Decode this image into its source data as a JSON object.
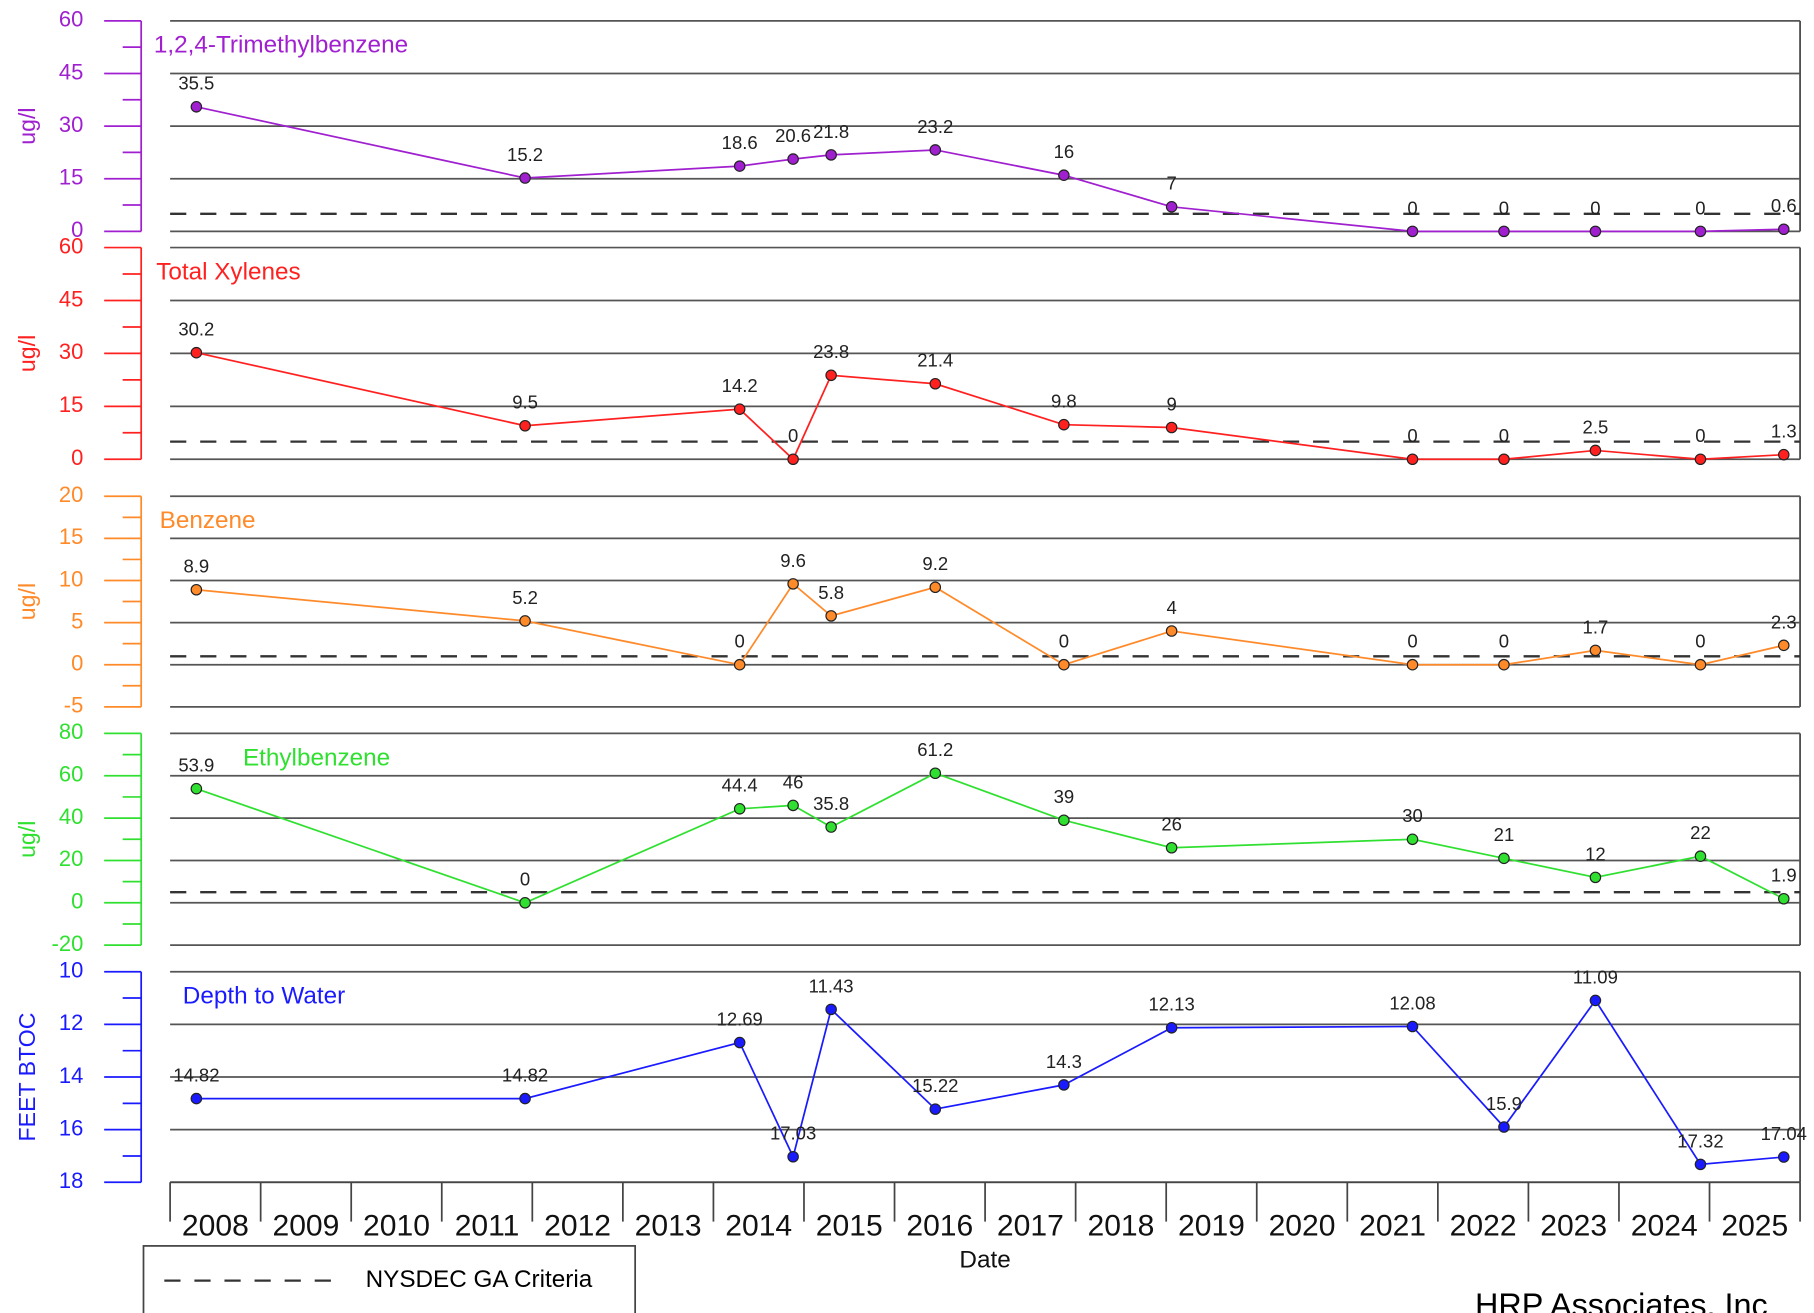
{
  "chart_data": [
    {
      "type": "line",
      "title": "1,2,4-Trimethylbenzene",
      "ylabel": "ug/l",
      "color": "#a020d0",
      "x": [
        2008.29,
        2011.92,
        2014.29,
        2014.88,
        2015.3,
        2016.45,
        2017.87,
        2019.06,
        2021.72,
        2022.73,
        2023.74,
        2024.9,
        2025.82
      ],
      "values": [
        35.5,
        15.2,
        18.6,
        20.6,
        21.8,
        23.2,
        16,
        7,
        0,
        0,
        0,
        0,
        0.6
      ],
      "xlim": [
        2008,
        2026
      ],
      "ylim": [
        0,
        60
      ],
      "yticks": [
        0,
        15,
        30,
        45,
        60
      ],
      "criteria": 5,
      "grid": true
    },
    {
      "type": "line",
      "title": "Total Xylenes",
      "ylabel": "ug/l",
      "color": "#ff2020",
      "x": [
        2008.29,
        2011.92,
        2014.29,
        2014.88,
        2015.3,
        2016.45,
        2017.87,
        2019.06,
        2021.72,
        2022.73,
        2023.74,
        2024.9,
        2025.82
      ],
      "values": [
        30.2,
        9.5,
        14.2,
        0,
        23.8,
        21.4,
        9.8,
        9,
        0,
        0,
        2.5,
        0,
        1.3
      ],
      "xlim": [
        2008,
        2026
      ],
      "ylim": [
        0,
        60
      ],
      "yticks": [
        0,
        15,
        30,
        45,
        60
      ],
      "criteria": 5,
      "grid": true
    },
    {
      "type": "line",
      "title": "Benzene",
      "ylabel": "ug/l",
      "color": "#ff8a2a",
      "x": [
        2008.29,
        2011.92,
        2014.29,
        2014.88,
        2015.3,
        2016.45,
        2017.87,
        2019.06,
        2021.72,
        2022.73,
        2023.74,
        2024.9,
        2025.82
      ],
      "values": [
        8.9,
        5.2,
        0,
        9.6,
        5.8,
        9.2,
        0,
        4,
        0,
        0,
        1.7,
        0,
        2.3
      ],
      "xlim": [
        2008,
        2026
      ],
      "ylim": [
        -5,
        20
      ],
      "yticks": [
        -5,
        0,
        5,
        10,
        15,
        20
      ],
      "criteria": 1,
      "grid": true
    },
    {
      "type": "line",
      "title": "Ethylbenzene",
      "ylabel": "ug/l",
      "color": "#30e030",
      "x": [
        2008.29,
        2011.92,
        2014.29,
        2014.88,
        2015.3,
        2016.45,
        2017.87,
        2019.06,
        2021.72,
        2022.73,
        2023.74,
        2024.9,
        2025.82
      ],
      "values": [
        53.9,
        0,
        44.4,
        46,
        35.8,
        61.2,
        39,
        26,
        30,
        21,
        12,
        22,
        1.9
      ],
      "xlim": [
        2008,
        2026
      ],
      "ylim": [
        -20,
        80
      ],
      "yticks": [
        -20,
        0,
        20,
        40,
        60,
        80
      ],
      "criteria": 5,
      "grid": true
    },
    {
      "type": "line",
      "title": "Depth to Water",
      "ylabel": "FEET BTOC",
      "color": "#1a1aff",
      "x": [
        2008.29,
        2011.92,
        2014.29,
        2014.88,
        2015.3,
        2016.45,
        2017.87,
        2019.06,
        2021.72,
        2022.73,
        2023.74,
        2024.9,
        2025.82
      ],
      "values": [
        14.82,
        14.82,
        12.69,
        17.03,
        11.43,
        15.22,
        14.3,
        12.13,
        12.08,
        15.9,
        11.09,
        17.32,
        17.04
      ],
      "xlim": [
        2008,
        2026
      ],
      "ylim": [
        18,
        10
      ],
      "yticks": [
        18,
        16,
        14,
        12,
        10
      ],
      "grid": true,
      "xlabel": "Date",
      "xticks": [
        2008,
        2009,
        2010,
        2011,
        2012,
        2013,
        2014,
        2015,
        2016,
        2017,
        2018,
        2019,
        2020,
        2021,
        2022,
        2023,
        2024,
        2025
      ]
    }
  ],
  "legend": {
    "label": "NYSDEC GA Criteria"
  },
  "footer": "HRP Associates, Inc"
}
